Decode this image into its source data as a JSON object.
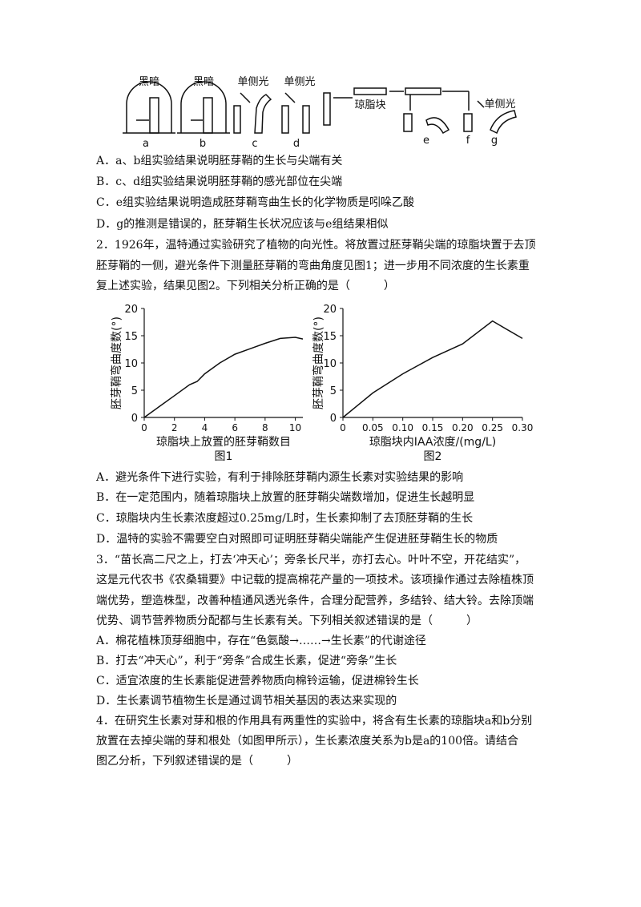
{
  "diagram": {
    "labels": [
      "黑暗",
      "黑暗",
      "单侧光",
      "单侧光",
      "琼脂块",
      "单侧光"
    ],
    "letters": [
      "a",
      "b",
      "c",
      "d",
      "e",
      "f",
      "g"
    ]
  },
  "q1": {
    "options": [
      "A．a、b组实验结果说明胚芽鞘的生长与尖端有关",
      "B．c、d组实验结果说明胚芽鞘的感光部位在尖端",
      "C．e组实验结果说明造成胚芽鞘弯曲生长的化学物质是吲哚乙酸",
      "D．g的推测是错误的，胚芽鞘生长状况应该与e组结果相似"
    ]
  },
  "q2": {
    "stem": [
      "2．1926年，温特通过实验研究了植物的向光性。将放置过胚芽鞘尖端的琼脂块置于去顶",
      "胚芽鞘的一侧，避光条件下测量胚芽鞘的弯曲角度见图1；进一步用不同浓度的生长素重",
      "复上述实验，结果见图2。下列相关分析正确的是（　　　）"
    ],
    "options": [
      "A．避光条件下进行实验，有利于排除胚芽鞘内源生长素对实验结果的影响",
      "B．在一定范围内，随着琼脂块上放置的胚芽鞘尖端数增加，促进生长越明显",
      "C．琼脂块内生长素浓度超过0.25mg/L时，生长素抑制了去顶胚芽鞘的生长",
      "D．温特的实验不需要空白对照即可证明胚芽鞘尖端能产生促进胚芽鞘生长的物质"
    ]
  },
  "chart_data": [
    {
      "type": "line",
      "caption": "图1",
      "x_label": "琼脂块上放置的胚芽鞘数目",
      "y_label": "胚芽鞘弯曲度数(°)",
      "x": [
        0,
        1,
        2,
        3,
        3.5,
        4,
        5,
        6,
        7,
        8,
        9,
        10,
        10.5
      ],
      "values": [
        0,
        2,
        4,
        6,
        6.6,
        8,
        10,
        11.6,
        12.6,
        13.6,
        14.5,
        14.7,
        14.4
      ],
      "color": "#111111",
      "xlim": [
        0,
        10.5
      ],
      "ylim": [
        0,
        20
      ],
      "xticks": [
        0,
        2,
        4,
        6,
        8,
        10
      ],
      "yticks": [
        0,
        5,
        10,
        15,
        20
      ]
    },
    {
      "type": "line",
      "caption": "图2",
      "x_label": "琼脂块内IAA浓度/(mg/L)",
      "y_label": "胚芽鞘弯曲度数(°)",
      "x": [
        0,
        0.05,
        0.1,
        0.15,
        0.2,
        0.25,
        0.3
      ],
      "values": [
        0,
        4.5,
        8,
        11,
        13.5,
        17.7,
        14.5
      ],
      "color": "#111111",
      "xlim": [
        0,
        0.3
      ],
      "ylim": [
        0,
        20
      ],
      "xticks": [
        0,
        0.05,
        {
          "value": 0.1,
          "label": "0.10"
        },
        0.15,
        {
          "value": 0.2,
          "label": "0.20"
        },
        0.25,
        {
          "value": 0.3,
          "label": "0.30"
        }
      ],
      "yticks": [
        0,
        5,
        10,
        15,
        20
      ]
    }
  ],
  "q3": {
    "stem": [
      "3．“苗长高二尺之上，打去‘冲天心’；旁条长尺半，亦打去心。叶叶不空，开花结实”，",
      "这是元代农书《农桑辑要》中记载的提高棉花产量的一项技术。该项操作通过去除植株顶",
      "端优势，塑造株型，改善种植通风透光条件，合理分配营养，多结铃、结大铃。去除顶端",
      "优势、调节营养物质分配都与生长素有关。下列相关叙述错误的是（　　　）"
    ],
    "options": [
      "A．棉花植株顶芽细胞中，存在“色氨酸→……→生长素”的代谢途径",
      "B．打去“冲天心”，利于“旁条”合成生长素，促进“旁条”生长",
      "C．适宜浓度的生长素能促进营养物质向棉铃运输，促进棉铃生长",
      "D．生长素调节植物生长是通过调节相关基因的表达来实现的"
    ]
  },
  "q4": {
    "stem": [
      "4．在研究生长素对芽和根的作用具有两重性的实验中，将含有生长素的琼脂块a和b分别",
      "放置在去掉尖端的芽和根处（如图甲所示），生长素浓度关系为b是a的100倍。请结合",
      "图乙分析，下列叙述错误的是（　　　）"
    ]
  }
}
